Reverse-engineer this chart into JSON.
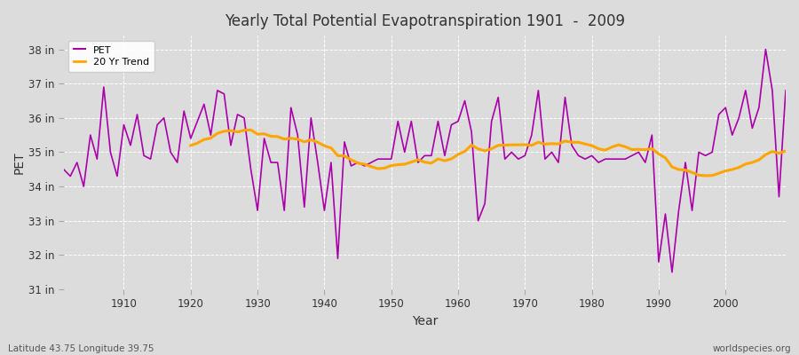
{
  "title": "Yearly Total Potential Evapotranspiration 1901  -  2009",
  "xlabel": "Year",
  "ylabel": "PET",
  "footer_left": "Latitude 43.75 Longitude 39.75",
  "footer_right": "worldspecies.org",
  "pet_color": "#AA00AA",
  "trend_color": "#FFA500",
  "bg_color": "#DCDCDC",
  "ylim_min": 31,
  "ylim_max": 38.4,
  "xlim_min": 1901,
  "xlim_max": 2009,
  "yticks": [
    31,
    32,
    33,
    34,
    35,
    36,
    37,
    38
  ],
  "ytick_labels": [
    "31 in",
    "32 in",
    "33 in",
    "34 in",
    "35 in",
    "36 in",
    "37 in",
    "38 in"
  ],
  "xticks": [
    1910,
    1920,
    1930,
    1940,
    1950,
    1960,
    1970,
    1980,
    1990,
    2000
  ],
  "trend_window": 20,
  "legend_labels": [
    "PET",
    "20 Yr Trend"
  ],
  "pet_values": [
    34.5,
    34.3,
    34.7,
    34.0,
    35.5,
    34.8,
    36.9,
    35.0,
    34.3,
    35.8,
    35.2,
    36.1,
    34.9,
    34.8,
    35.8,
    36.0,
    35.0,
    34.7,
    36.2,
    35.4,
    35.9,
    36.4,
    35.5,
    36.8,
    36.7,
    35.2,
    36.1,
    36.0,
    34.5,
    33.3,
    35.4,
    34.7,
    34.7,
    33.3,
    36.3,
    35.5,
    33.4,
    36.0,
    34.7,
    33.3,
    34.7,
    31.9,
    35.3,
    34.6,
    34.7,
    34.6,
    34.7,
    34.8,
    34.8,
    34.8,
    35.9,
    35.0,
    35.9,
    34.7,
    34.9,
    34.9,
    35.9,
    34.9,
    35.8,
    35.9,
    36.5,
    35.6,
    33.0,
    33.5,
    35.9,
    36.6,
    34.8,
    35.0,
    34.8,
    34.9,
    35.5,
    36.8,
    34.8,
    35.0,
    34.7,
    36.6,
    35.2,
    34.9,
    34.8,
    34.9,
    34.7,
    34.8,
    34.8,
    34.8,
    34.8,
    34.9,
    35.0,
    34.7,
    35.5,
    31.8,
    33.2,
    31.5,
    33.3,
    34.7,
    33.3,
    35.0,
    34.9,
    35.0,
    36.1,
    36.3,
    35.5,
    36.0,
    36.8,
    35.7,
    36.3,
    38.0,
    36.8,
    33.7,
    36.8
  ]
}
